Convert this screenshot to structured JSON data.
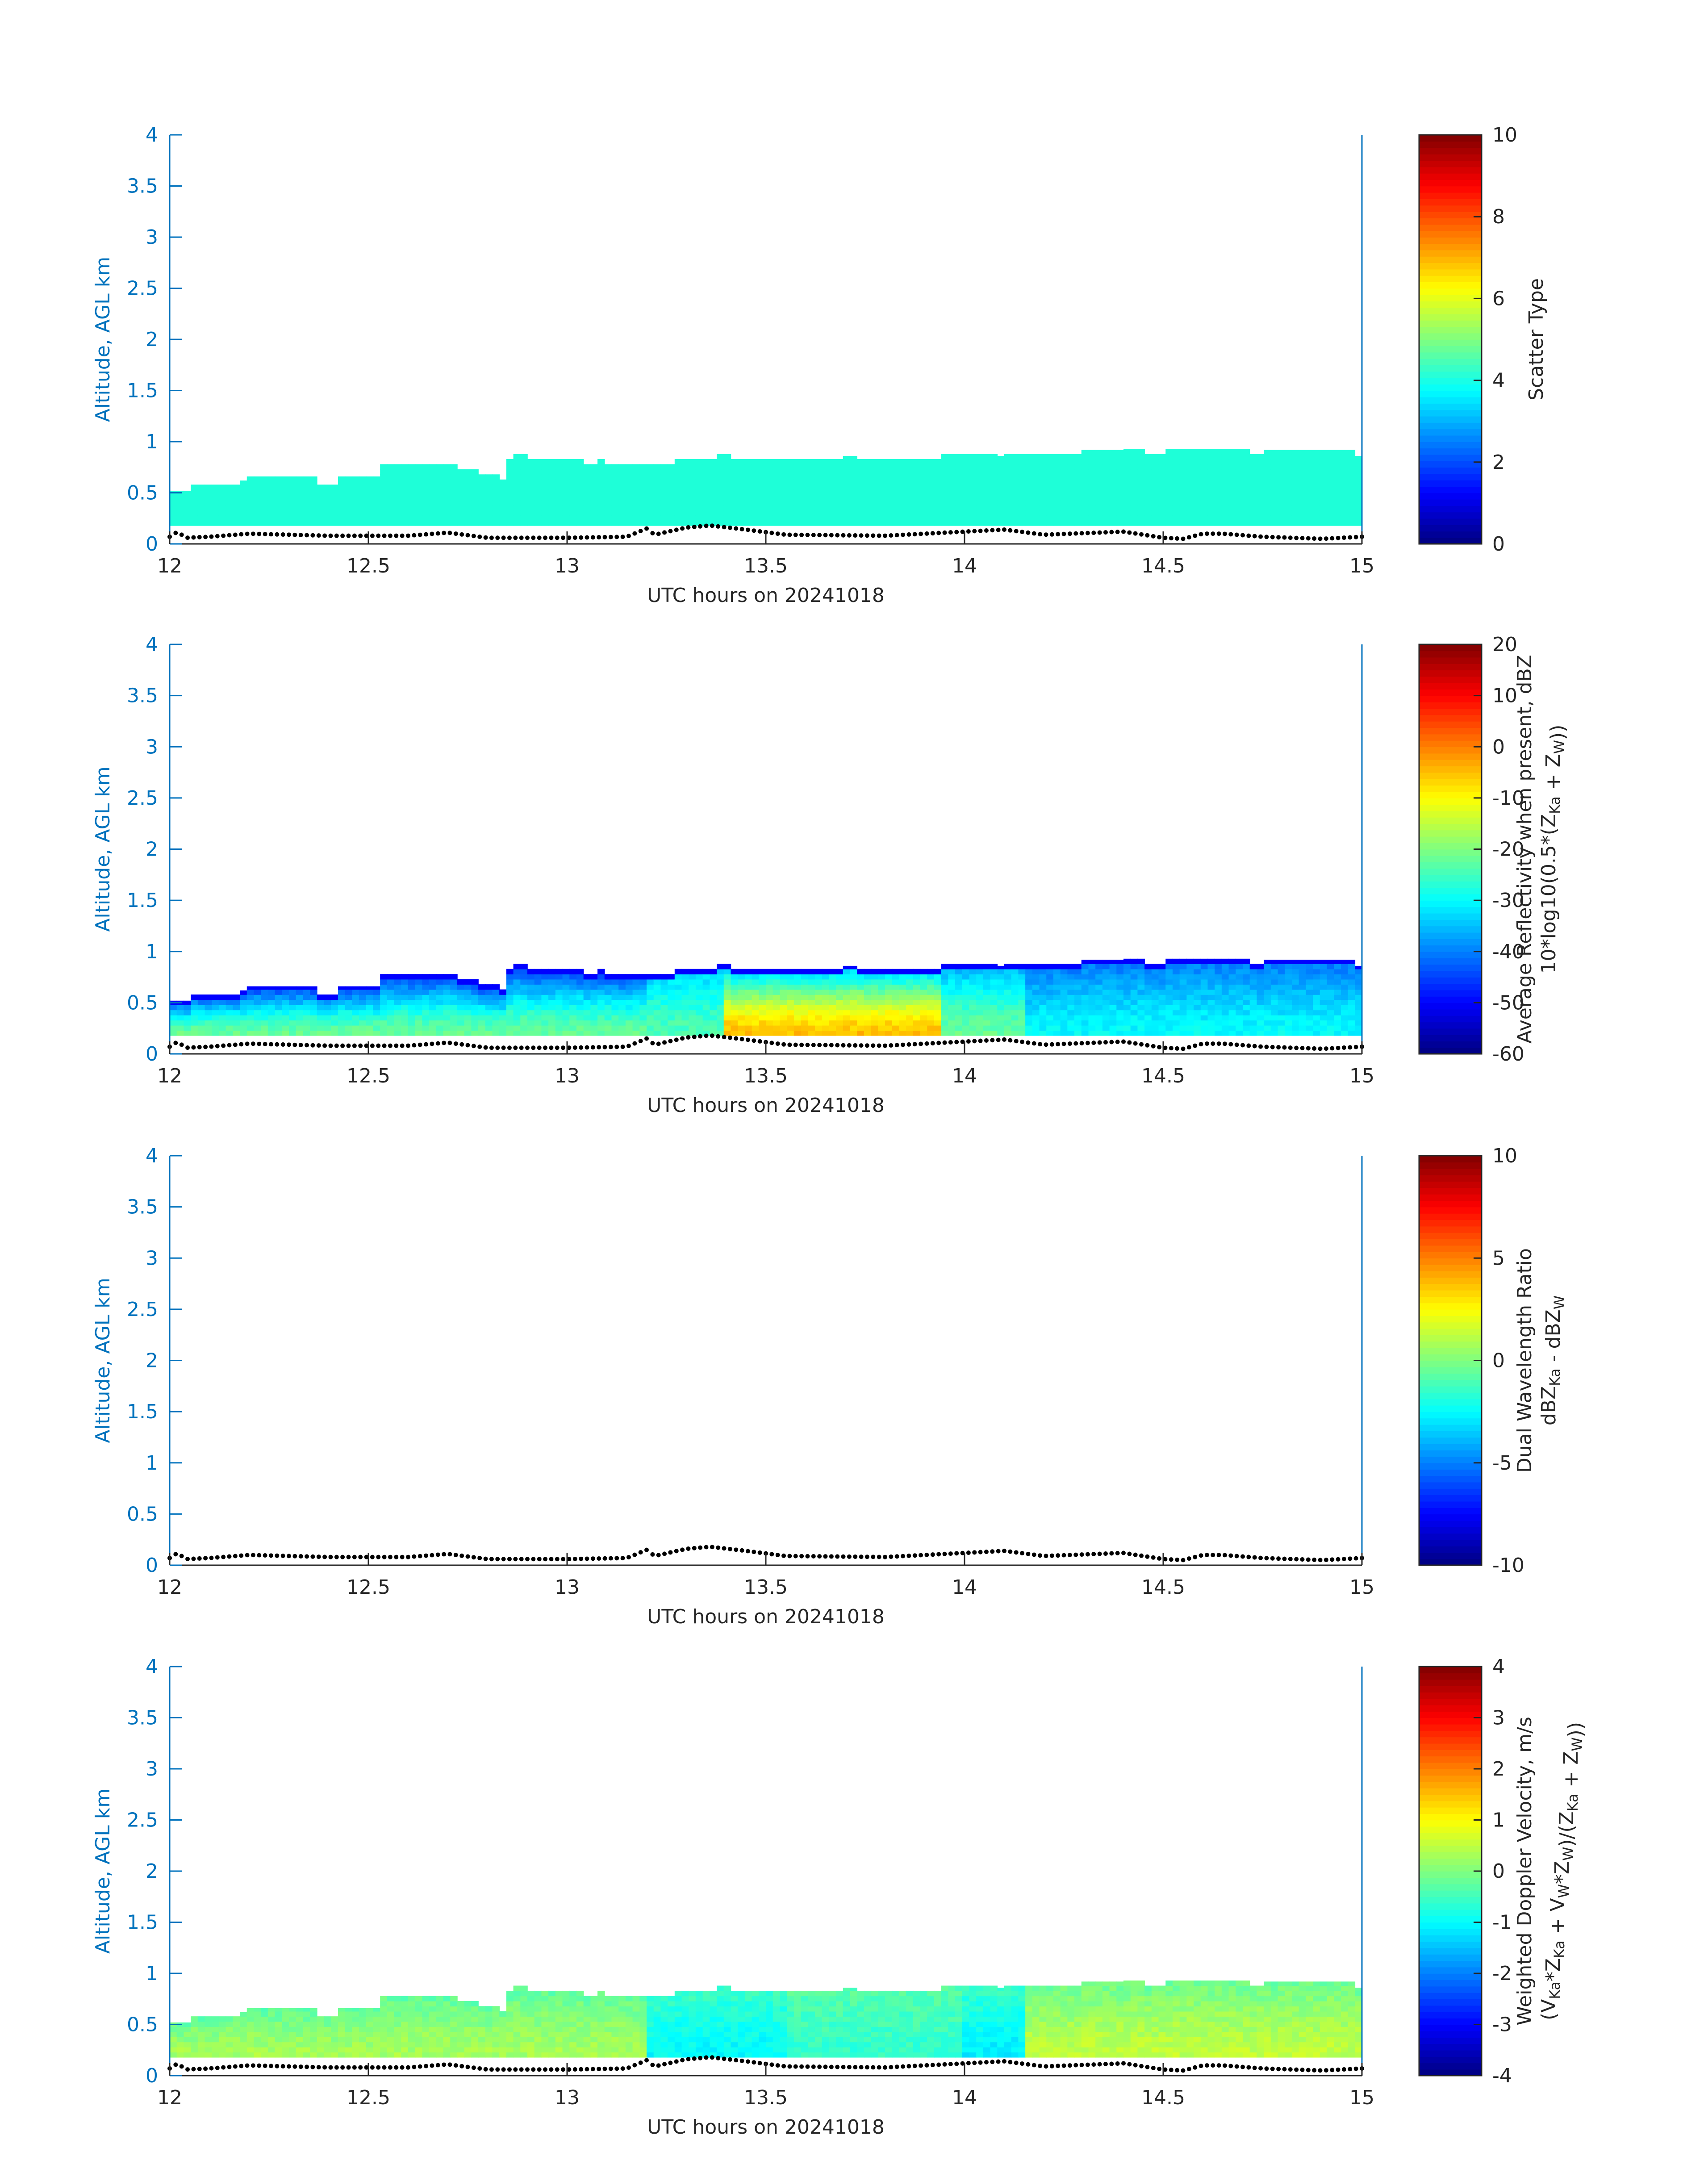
{
  "figure": {
    "colors": {
      "axis_blue": "#0072BD",
      "black": "#262626",
      "fill_teal": "#1EFFD8",
      "background": "#FFFFFF"
    },
    "colormap": "jet"
  },
  "chart_data": [
    {
      "type": "heatmap",
      "title": "",
      "xlabel": "UTC hours on 20241018",
      "ylabel": "Altitude, AGL km",
      "xlim": [
        12,
        15
      ],
      "ylim": [
        0,
        4
      ],
      "xticks": [
        "12",
        "12.5",
        "13",
        "13.5",
        "14",
        "14.5",
        "15"
      ],
      "yticks": [
        "0",
        "0.5",
        "1",
        "1.5",
        "2",
        "2.5",
        "3",
        "3.5",
        "4"
      ],
      "colorbar": {
        "label_lines": [
          "Scatter Type"
        ],
        "range": [
          0,
          10
        ],
        "ticks": [
          "0",
          "2",
          "4",
          "6",
          "8",
          "10"
        ]
      },
      "field": "scatter_type",
      "uniform_value": 4.5,
      "echo_base_km": 0.18,
      "echo_top_km": [
        [
          12.0,
          0.52
        ],
        [
          12.05,
          0.58
        ],
        [
          12.18,
          0.62
        ],
        [
          12.2,
          0.66
        ],
        [
          12.37,
          0.6
        ],
        [
          12.43,
          0.66
        ],
        [
          12.53,
          0.78
        ],
        [
          12.72,
          0.74
        ],
        [
          12.78,
          0.68
        ],
        [
          12.83,
          0.64
        ],
        [
          12.85,
          0.84
        ],
        [
          12.87,
          0.88
        ],
        [
          12.9,
          0.84
        ],
        [
          13.05,
          0.8
        ],
        [
          13.08,
          0.84
        ],
        [
          13.1,
          0.8
        ],
        [
          13.27,
          0.84
        ],
        [
          13.38,
          0.88
        ],
        [
          13.42,
          0.84
        ],
        [
          13.7,
          0.86
        ],
        [
          13.73,
          0.84
        ],
        [
          13.95,
          0.88
        ],
        [
          14.08,
          0.86
        ],
        [
          14.1,
          0.88
        ],
        [
          14.27,
          0.9
        ],
        [
          14.3,
          0.92
        ],
        [
          14.4,
          0.94
        ],
        [
          14.45,
          0.9
        ],
        [
          14.5,
          0.94
        ],
        [
          14.72,
          0.9
        ],
        [
          14.75,
          0.92
        ],
        [
          14.98,
          0.86
        ],
        [
          15.0,
          0.84
        ]
      ],
      "surface_km": [
        [
          12.0,
          0.07
        ],
        [
          12.02,
          0.12
        ],
        [
          12.04,
          0.06
        ],
        [
          12.1,
          0.07
        ],
        [
          12.2,
          0.1
        ],
        [
          12.4,
          0.08
        ],
        [
          12.6,
          0.08
        ],
        [
          12.7,
          0.11
        ],
        [
          12.8,
          0.06
        ],
        [
          13.0,
          0.06
        ],
        [
          13.15,
          0.07
        ],
        [
          13.2,
          0.15
        ],
        [
          13.22,
          0.09
        ],
        [
          13.3,
          0.16
        ],
        [
          13.36,
          0.18
        ],
        [
          13.45,
          0.14
        ],
        [
          13.55,
          0.09
        ],
        [
          13.8,
          0.08
        ],
        [
          14.0,
          0.12
        ],
        [
          14.1,
          0.14
        ],
        [
          14.2,
          0.09
        ],
        [
          14.4,
          0.12
        ],
        [
          14.5,
          0.06
        ],
        [
          14.55,
          0.05
        ],
        [
          14.6,
          0.1
        ],
        [
          14.65,
          0.1
        ],
        [
          14.75,
          0.07
        ],
        [
          14.9,
          0.05
        ],
        [
          15.0,
          0.07
        ]
      ]
    },
    {
      "type": "heatmap",
      "title": "",
      "xlabel": "UTC hours on 20241018",
      "ylabel": "Altitude, AGL km",
      "xlim": [
        12,
        15
      ],
      "ylim": [
        0,
        4
      ],
      "xticks": [
        "12",
        "12.5",
        "13",
        "13.5",
        "14",
        "14.5",
        "15"
      ],
      "yticks": [
        "0",
        "0.5",
        "1",
        "1.5",
        "2",
        "2.5",
        "3",
        "3.5",
        "4"
      ],
      "colorbar": {
        "label_lines": [
          "Average Reflectivity when present, dBZ",
          "10*log10(0.5*(Z_Ka + Z_W))"
        ],
        "range": [
          -60,
          20
        ],
        "ticks": [
          "-60",
          "-50",
          "-40",
          "-30",
          "-20",
          "-10",
          "0",
          "10",
          "20"
        ]
      },
      "field": "reflectivity_dbz",
      "echo_base_km": 0.18,
      "approx_values_dbz": [
        {
          "x": [
            12.0,
            13.2
          ],
          "core": -22,
          "top": -48
        },
        {
          "x": [
            13.2,
            13.4
          ],
          "core": -24,
          "top": -35
        },
        {
          "x": [
            13.4,
            13.95
          ],
          "core": -5,
          "top": -38
        },
        {
          "x": [
            13.95,
            14.15
          ],
          "core": -22,
          "top": -38
        },
        {
          "x": [
            14.15,
            15.0
          ],
          "core": -30,
          "top": -42
        }
      ],
      "echo_top_km": [
        [
          12.0,
          0.52
        ],
        [
          12.05,
          0.58
        ],
        [
          12.18,
          0.62
        ],
        [
          12.2,
          0.66
        ],
        [
          12.37,
          0.6
        ],
        [
          12.43,
          0.66
        ],
        [
          12.53,
          0.78
        ],
        [
          12.72,
          0.74
        ],
        [
          12.78,
          0.68
        ],
        [
          12.83,
          0.64
        ],
        [
          12.85,
          0.84
        ],
        [
          12.87,
          0.88
        ],
        [
          12.9,
          0.84
        ],
        [
          13.05,
          0.8
        ],
        [
          13.08,
          0.84
        ],
        [
          13.1,
          0.8
        ],
        [
          13.27,
          0.84
        ],
        [
          13.38,
          0.88
        ],
        [
          13.42,
          0.84
        ],
        [
          13.7,
          0.86
        ],
        [
          13.73,
          0.84
        ],
        [
          13.95,
          0.88
        ],
        [
          14.08,
          0.86
        ],
        [
          14.1,
          0.88
        ],
        [
          14.27,
          0.9
        ],
        [
          14.3,
          0.92
        ],
        [
          14.4,
          0.94
        ],
        [
          14.45,
          0.9
        ],
        [
          14.5,
          0.94
        ],
        [
          14.72,
          0.9
        ],
        [
          14.75,
          0.92
        ],
        [
          14.98,
          0.86
        ],
        [
          15.0,
          0.84
        ]
      ],
      "surface_km": [
        [
          12.0,
          0.07
        ],
        [
          12.02,
          0.12
        ],
        [
          12.04,
          0.06
        ],
        [
          12.1,
          0.07
        ],
        [
          12.2,
          0.1
        ],
        [
          12.4,
          0.08
        ],
        [
          12.6,
          0.08
        ],
        [
          12.7,
          0.11
        ],
        [
          12.8,
          0.06
        ],
        [
          13.0,
          0.06
        ],
        [
          13.15,
          0.07
        ],
        [
          13.2,
          0.15
        ],
        [
          13.22,
          0.09
        ],
        [
          13.3,
          0.16
        ],
        [
          13.36,
          0.18
        ],
        [
          13.45,
          0.14
        ],
        [
          13.55,
          0.09
        ],
        [
          13.8,
          0.08
        ],
        [
          14.0,
          0.12
        ],
        [
          14.1,
          0.14
        ],
        [
          14.2,
          0.09
        ],
        [
          14.4,
          0.12
        ],
        [
          14.5,
          0.06
        ],
        [
          14.55,
          0.05
        ],
        [
          14.6,
          0.1
        ],
        [
          14.65,
          0.1
        ],
        [
          14.75,
          0.07
        ],
        [
          14.9,
          0.05
        ],
        [
          15.0,
          0.07
        ]
      ]
    },
    {
      "type": "heatmap",
      "title": "",
      "xlabel": "UTC hours on 20241018",
      "ylabel": "Altitude, AGL km",
      "xlim": [
        12,
        15
      ],
      "ylim": [
        0,
        4
      ],
      "xticks": [
        "12",
        "12.5",
        "13",
        "13.5",
        "14",
        "14.5",
        "15"
      ],
      "yticks": [
        "0",
        "0.5",
        "1",
        "1.5",
        "2",
        "2.5",
        "3",
        "3.5",
        "4"
      ],
      "colorbar": {
        "label_lines": [
          "Dual Wavelength Ratio",
          "dBZ_Ka - dBZ_W"
        ],
        "range": [
          -10,
          10
        ],
        "ticks": [
          "-10",
          "-5",
          "0",
          "5",
          "10"
        ]
      },
      "field": "dual_wavelength_ratio",
      "no_data": true,
      "surface_km": [
        [
          12.0,
          0.07
        ],
        [
          12.02,
          0.12
        ],
        [
          12.04,
          0.06
        ],
        [
          12.1,
          0.07
        ],
        [
          12.2,
          0.1
        ],
        [
          12.4,
          0.08
        ],
        [
          12.6,
          0.08
        ],
        [
          12.7,
          0.11
        ],
        [
          12.8,
          0.06
        ],
        [
          13.0,
          0.06
        ],
        [
          13.15,
          0.07
        ],
        [
          13.2,
          0.15
        ],
        [
          13.22,
          0.09
        ],
        [
          13.3,
          0.16
        ],
        [
          13.36,
          0.18
        ],
        [
          13.45,
          0.14
        ],
        [
          13.55,
          0.09
        ],
        [
          13.8,
          0.08
        ],
        [
          14.0,
          0.12
        ],
        [
          14.1,
          0.14
        ],
        [
          14.2,
          0.09
        ],
        [
          14.4,
          0.12
        ],
        [
          14.5,
          0.06
        ],
        [
          14.55,
          0.05
        ],
        [
          14.6,
          0.1
        ],
        [
          14.65,
          0.1
        ],
        [
          14.75,
          0.07
        ],
        [
          14.9,
          0.05
        ],
        [
          15.0,
          0.07
        ]
      ]
    },
    {
      "type": "heatmap",
      "title": "",
      "xlabel": "UTC hours on 20241018",
      "ylabel": "Altitude, AGL km",
      "xlim": [
        12,
        15
      ],
      "ylim": [
        0,
        4
      ],
      "xticks": [
        "12",
        "12.5",
        "13",
        "13.5",
        "14",
        "14.5",
        "15"
      ],
      "yticks": [
        "0",
        "0.5",
        "1",
        "1.5",
        "2",
        "2.5",
        "3",
        "3.5",
        "4"
      ],
      "colorbar": {
        "label_lines": [
          "Weighted Doppler Velocity, m/s",
          "(V_Ka*Z_Ka + V_W*Z_W)/(Z_Ka + Z_W))"
        ],
        "range": [
          -4,
          4
        ],
        "ticks": [
          "-4",
          "-3",
          "-2",
          "-1",
          "0",
          "1",
          "2",
          "3",
          "4"
        ]
      },
      "field": "weighted_doppler_velocity_ms",
      "echo_base_km": 0.18,
      "approx_values_ms": [
        {
          "x": [
            12.0,
            13.2
          ],
          "core": 0.3,
          "top": -0.3
        },
        {
          "x": [
            13.2,
            13.55
          ],
          "core": -1.0,
          "top": -0.5
        },
        {
          "x": [
            13.55,
            14.0
          ],
          "core": -0.6,
          "top": -0.3
        },
        {
          "x": [
            14.0,
            14.15
          ],
          "core": -1.1,
          "top": -0.5
        },
        {
          "x": [
            14.15,
            15.0
          ],
          "core": 0.5,
          "top": -0.2
        }
      ],
      "echo_top_km": [
        [
          12.0,
          0.52
        ],
        [
          12.05,
          0.58
        ],
        [
          12.18,
          0.62
        ],
        [
          12.2,
          0.66
        ],
        [
          12.37,
          0.6
        ],
        [
          12.43,
          0.66
        ],
        [
          12.53,
          0.78
        ],
        [
          12.72,
          0.74
        ],
        [
          12.78,
          0.68
        ],
        [
          12.83,
          0.64
        ],
        [
          12.85,
          0.84
        ],
        [
          12.87,
          0.88
        ],
        [
          12.9,
          0.84
        ],
        [
          13.05,
          0.8
        ],
        [
          13.08,
          0.84
        ],
        [
          13.1,
          0.8
        ],
        [
          13.27,
          0.84
        ],
        [
          13.38,
          0.88
        ],
        [
          13.42,
          0.84
        ],
        [
          13.7,
          0.86
        ],
        [
          13.73,
          0.84
        ],
        [
          13.95,
          0.88
        ],
        [
          14.08,
          0.86
        ],
        [
          14.1,
          0.88
        ],
        [
          14.27,
          0.9
        ],
        [
          14.3,
          0.92
        ],
        [
          14.4,
          0.94
        ],
        [
          14.45,
          0.9
        ],
        [
          14.5,
          0.94
        ],
        [
          14.72,
          0.9
        ],
        [
          14.75,
          0.92
        ],
        [
          14.98,
          0.86
        ],
        [
          15.0,
          0.84
        ]
      ],
      "surface_km": [
        [
          12.0,
          0.07
        ],
        [
          12.02,
          0.12
        ],
        [
          12.04,
          0.06
        ],
        [
          12.1,
          0.07
        ],
        [
          12.2,
          0.1
        ],
        [
          12.4,
          0.08
        ],
        [
          12.6,
          0.08
        ],
        [
          12.7,
          0.11
        ],
        [
          12.8,
          0.06
        ],
        [
          13.0,
          0.06
        ],
        [
          13.15,
          0.07
        ],
        [
          13.2,
          0.15
        ],
        [
          13.22,
          0.09
        ],
        [
          13.3,
          0.16
        ],
        [
          13.36,
          0.18
        ],
        [
          13.45,
          0.14
        ],
        [
          13.55,
          0.09
        ],
        [
          13.8,
          0.08
        ],
        [
          14.0,
          0.12
        ],
        [
          14.1,
          0.14
        ],
        [
          14.2,
          0.09
        ],
        [
          14.4,
          0.12
        ],
        [
          14.5,
          0.06
        ],
        [
          14.55,
          0.05
        ],
        [
          14.6,
          0.1
        ],
        [
          14.65,
          0.1
        ],
        [
          14.75,
          0.07
        ],
        [
          14.9,
          0.05
        ],
        [
          15.0,
          0.07
        ]
      ]
    }
  ]
}
